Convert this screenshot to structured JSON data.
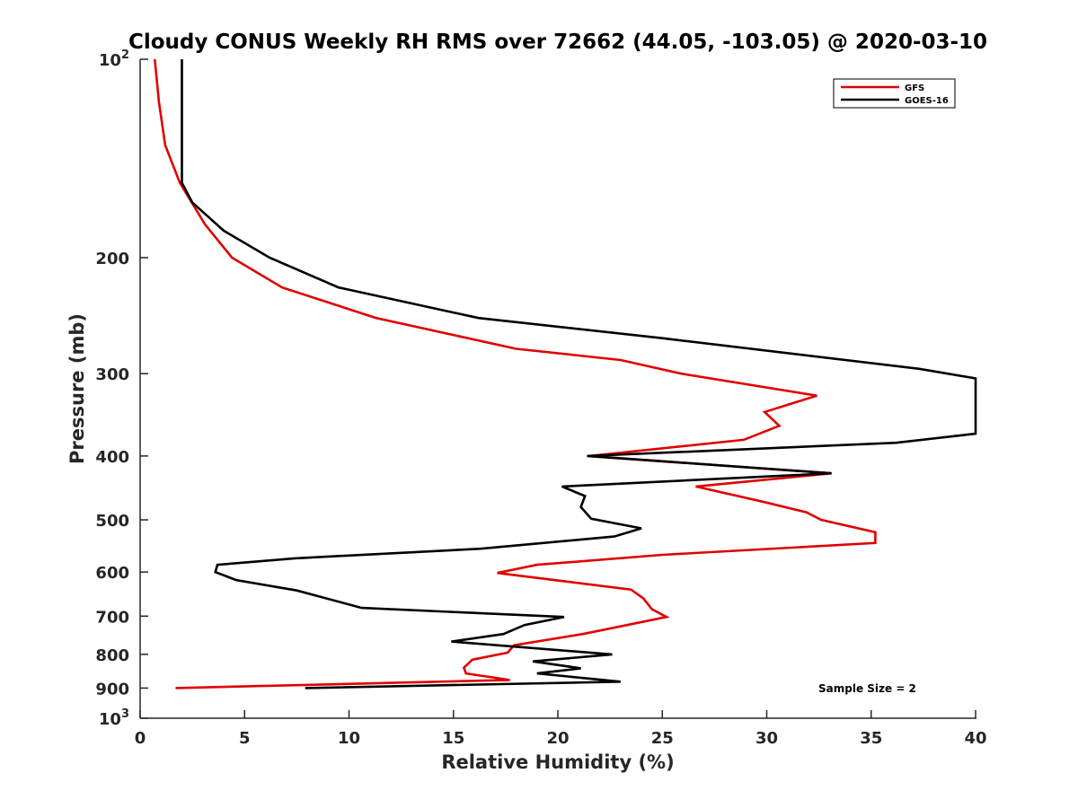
{
  "chart_data": {
    "type": "line",
    "title": "Cloudy CONUS Weekly RH RMS over 72662 (44.05, -103.05) @ 2020-03-10",
    "xlabel": "Relative Humidity (%)",
    "ylabel": "Pressure (mb)",
    "xlim": [
      0,
      40
    ],
    "ylim": [
      100,
      1000
    ],
    "y_scale": "log",
    "y_reversed": true,
    "x_ticks": [
      "0",
      "5",
      "10",
      "15",
      "20",
      "25",
      "30",
      "35",
      "40"
    ],
    "y_ticks": [
      {
        "value": 100,
        "base": "10",
        "exp": "2"
      },
      {
        "value": 200,
        "label": "200"
      },
      {
        "value": 300,
        "label": "300"
      },
      {
        "value": 400,
        "label": "400"
      },
      {
        "value": 500,
        "label": "500"
      },
      {
        "value": 600,
        "label": "600"
      },
      {
        "value": 700,
        "label": "700"
      },
      {
        "value": 800,
        "label": "800"
      },
      {
        "value": 900,
        "label": "900"
      },
      {
        "value": 1000,
        "base": "10",
        "exp": "3"
      }
    ],
    "grid": false,
    "legend_position": "top-right",
    "annotation": "Sample Size = 2",
    "series": [
      {
        "name": "GFS",
        "color": "#e00000",
        "points": [
          [
            0.7,
            100
          ],
          [
            0.9,
            116
          ],
          [
            1.2,
            135
          ],
          [
            1.9,
            154
          ],
          [
            3.1,
            178
          ],
          [
            4.4,
            200
          ],
          [
            6.8,
            222
          ],
          [
            11.3,
            247
          ],
          [
            18.0,
            275
          ],
          [
            23.0,
            286
          ],
          [
            25.9,
            300
          ],
          [
            32.4,
            324
          ],
          [
            29.9,
            343
          ],
          [
            30.6,
            360
          ],
          [
            28.9,
            378
          ],
          [
            21.5,
            400
          ],
          [
            33.1,
            425
          ],
          [
            26.6,
            445
          ],
          [
            29.9,
            470
          ],
          [
            31.9,
            487
          ],
          [
            32.6,
            500
          ],
          [
            35.2,
            522
          ],
          [
            35.2,
            542
          ],
          [
            25.0,
            565
          ],
          [
            19.0,
            585
          ],
          [
            17.1,
            602
          ],
          [
            20.0,
            618
          ],
          [
            23.5,
            638
          ],
          [
            24.1,
            658
          ],
          [
            24.5,
            683
          ],
          [
            25.2,
            702
          ],
          [
            23.5,
            720
          ],
          [
            21.2,
            745
          ],
          [
            17.9,
            775
          ],
          [
            17.6,
            795
          ],
          [
            15.9,
            815
          ],
          [
            15.5,
            838
          ],
          [
            15.6,
            855
          ],
          [
            17.7,
            875
          ],
          [
            1.7,
            900
          ]
        ]
      },
      {
        "name": "GOES-16",
        "color": "#000000",
        "points": [
          [
            2.0,
            100
          ],
          [
            2.0,
            116
          ],
          [
            2.0,
            135
          ],
          [
            2.0,
            154
          ],
          [
            2.5,
            165
          ],
          [
            4.0,
            182
          ],
          [
            6.2,
            200
          ],
          [
            9.5,
            222
          ],
          [
            16.2,
            247
          ],
          [
            25.0,
            265
          ],
          [
            37.3,
            295
          ],
          [
            40.0,
            305
          ],
          [
            40.0,
            370
          ],
          [
            36.2,
            382
          ],
          [
            21.4,
            400
          ],
          [
            33.1,
            425
          ],
          [
            20.2,
            445
          ],
          [
            21.3,
            460
          ],
          [
            21.1,
            478
          ],
          [
            21.6,
            498
          ],
          [
            24.0,
            515
          ],
          [
            22.7,
            530
          ],
          [
            16.3,
            553
          ],
          [
            7.4,
            572
          ],
          [
            3.7,
            585
          ],
          [
            3.6,
            600
          ],
          [
            4.6,
            617
          ],
          [
            7.5,
            640
          ],
          [
            10.6,
            680
          ],
          [
            20.3,
            702
          ],
          [
            18.4,
            722
          ],
          [
            17.4,
            745
          ],
          [
            14.9,
            765
          ],
          [
            22.6,
            800
          ],
          [
            18.8,
            820
          ],
          [
            21.1,
            840
          ],
          [
            19.0,
            855
          ],
          [
            23.0,
            880
          ],
          [
            7.9,
            900
          ]
        ]
      }
    ]
  }
}
